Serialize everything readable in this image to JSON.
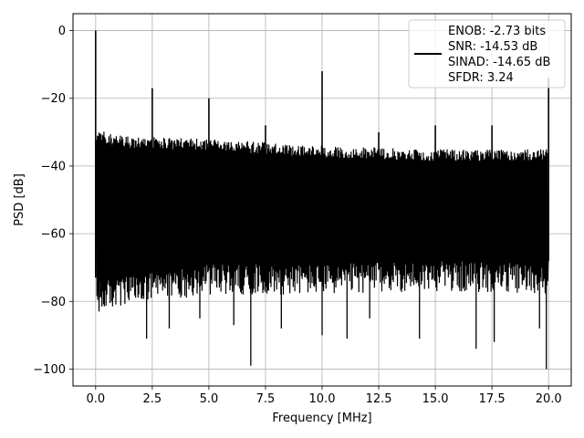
{
  "chart_data": {
    "type": "line",
    "xlabel": "Frequency [MHz]",
    "ylabel": "PSD [dB]",
    "xlim": [
      -1.0,
      21.0
    ],
    "ylim": [
      -105,
      5
    ],
    "xticks": [
      0.0,
      2.5,
      5.0,
      7.5,
      10.0,
      12.5,
      15.0,
      17.5,
      20.0
    ],
    "xtick_labels": [
      "0.0",
      "2.5",
      "5.0",
      "7.5",
      "10.0",
      "12.5",
      "15.0",
      "17.5",
      "20.0"
    ],
    "yticks": [
      0,
      -20,
      -40,
      -60,
      -80,
      -100
    ],
    "ytick_labels": [
      "0",
      "−20",
      "−40",
      "−60",
      "−80",
      "−100"
    ],
    "grid": true,
    "legend_position": "top-right",
    "series_color": "#000000",
    "legend_lines": [
      "ENOB: -2.73 bits",
      "SNR: -14.53 dB",
      "SINAD: -14.65 dB",
      "SFDR: 3.24"
    ],
    "noise_floor": {
      "x_range": [
        0.0,
        20.0
      ],
      "upper_envelope": [
        [
          0.05,
          -29
        ],
        [
          1.0,
          -31
        ],
        [
          5.0,
          -32
        ],
        [
          10.0,
          -34
        ],
        [
          15.0,
          -35
        ],
        [
          20.0,
          -35
        ]
      ],
      "lower_envelope": [
        [
          0.05,
          -83
        ],
        [
          5.0,
          -78
        ],
        [
          10.0,
          -78
        ],
        [
          15.0,
          -77
        ],
        [
          20.0,
          -78
        ]
      ]
    },
    "spurs": [
      {
        "x": 0.0,
        "y": 0.0
      },
      {
        "x": 2.5,
        "y": -17
      },
      {
        "x": 5.0,
        "y": -20
      },
      {
        "x": 7.5,
        "y": -28
      },
      {
        "x": 10.0,
        "y": -12
      },
      {
        "x": 12.5,
        "y": -30
      },
      {
        "x": 15.0,
        "y": -28
      },
      {
        "x": 17.5,
        "y": -28
      },
      {
        "x": 20.0,
        "y": -14
      }
    ],
    "deep_dips": [
      {
        "x": 0.15,
        "y": -83
      },
      {
        "x": 2.25,
        "y": -91
      },
      {
        "x": 3.25,
        "y": -88
      },
      {
        "x": 4.6,
        "y": -85
      },
      {
        "x": 6.1,
        "y": -87
      },
      {
        "x": 6.85,
        "y": -99
      },
      {
        "x": 8.2,
        "y": -88
      },
      {
        "x": 10.0,
        "y": -90
      },
      {
        "x": 11.1,
        "y": -91
      },
      {
        "x": 12.1,
        "y": -85
      },
      {
        "x": 14.3,
        "y": -91
      },
      {
        "x": 16.8,
        "y": -94
      },
      {
        "x": 17.6,
        "y": -92
      },
      {
        "x": 19.6,
        "y": -88
      },
      {
        "x": 19.9,
        "y": -100
      }
    ]
  }
}
